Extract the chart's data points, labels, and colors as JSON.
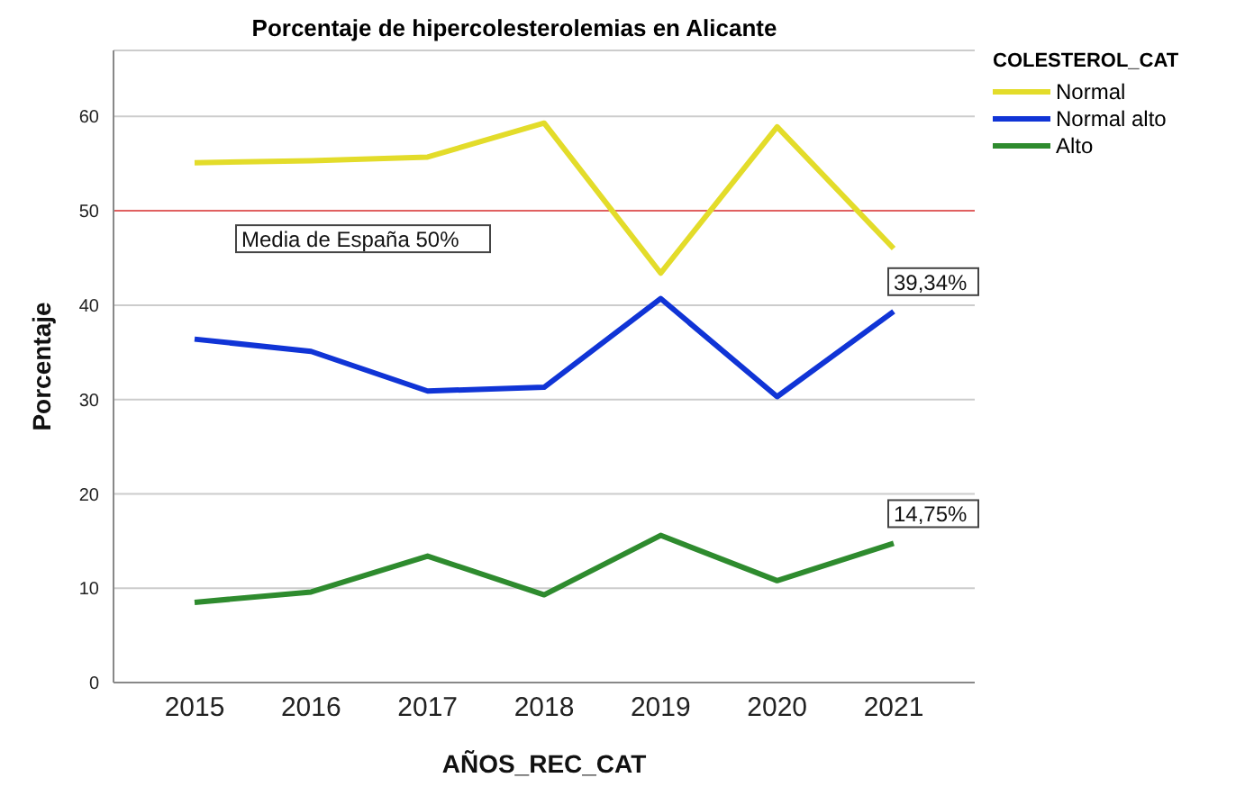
{
  "chart_data": {
    "type": "line",
    "title": "Porcentaje de hipercolesterolemias en Alicante",
    "xlabel": "AÑOS_REC_CAT",
    "ylabel": "Porcentaje",
    "legend_title": "COLESTEROL_CAT",
    "categories": [
      "2015",
      "2016",
      "2017",
      "2018",
      "2019",
      "2020",
      "2021"
    ],
    "series": [
      {
        "name": "Normal",
        "color": "#e3dc2a",
        "values": [
          55.1,
          55.3,
          55.7,
          59.3,
          43.4,
          58.9,
          46.0
        ]
      },
      {
        "name": "Normal alto",
        "color": "#1034d6",
        "values": [
          36.4,
          35.1,
          30.9,
          31.3,
          40.7,
          30.3,
          39.34
        ]
      },
      {
        "name": "Alto",
        "color": "#2e8b2e",
        "values": [
          8.5,
          9.6,
          13.4,
          9.3,
          15.6,
          10.8,
          14.75
        ]
      }
    ],
    "ylim": [
      0,
      67
    ],
    "yticks": [
      0,
      10,
      20,
      30,
      40,
      50,
      60
    ],
    "grid": "y",
    "legend": "top right",
    "marker": "none",
    "line_style": "solid",
    "ref_lines": [
      {
        "axis": "y",
        "value": 50,
        "label": "Media de España 50%",
        "color": "#e06060"
      }
    ],
    "annotations": [
      {
        "text": "39,34%",
        "x": "2021",
        "y": 39.34
      },
      {
        "text": "14,75%",
        "x": "2021",
        "y": 14.75
      }
    ]
  }
}
